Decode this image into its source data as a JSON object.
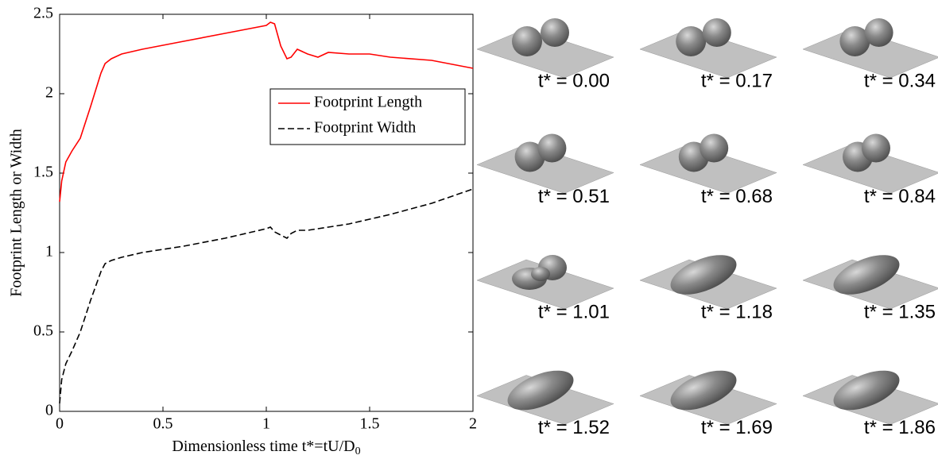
{
  "chart_data": {
    "type": "line",
    "x_label": "Dimensionless time t*=tU/D",
    "x_label_sub": "0",
    "y_label": "Footprint Length or Width",
    "x": [
      0,
      0.01,
      0.03,
      0.06,
      0.1,
      0.15,
      0.2,
      0.22,
      0.25,
      0.3,
      0.4,
      0.6,
      0.8,
      1.0,
      1.02,
      1.04,
      1.07,
      1.1,
      1.12,
      1.15,
      1.2,
      1.25,
      1.3,
      1.4,
      1.5,
      1.6,
      1.8,
      2.0
    ],
    "series": [
      {
        "name": "Footprint Length",
        "color": "#ff0000",
        "linestyle": "solid",
        "values": [
          1.32,
          1.45,
          1.57,
          1.64,
          1.72,
          1.92,
          2.13,
          2.19,
          2.22,
          2.25,
          2.28,
          2.33,
          2.38,
          2.43,
          2.45,
          2.44,
          2.3,
          2.22,
          2.23,
          2.28,
          2.25,
          2.23,
          2.26,
          2.25,
          2.25,
          2.23,
          2.21,
          2.16
        ]
      },
      {
        "name": "Footprint Width",
        "color": "#000000",
        "linestyle": "dashed",
        "values": [
          0.05,
          0.2,
          0.3,
          0.38,
          0.5,
          0.7,
          0.88,
          0.93,
          0.95,
          0.97,
          1.0,
          1.04,
          1.09,
          1.15,
          1.16,
          1.13,
          1.11,
          1.09,
          1.12,
          1.14,
          1.14,
          1.15,
          1.16,
          1.18,
          1.21,
          1.24,
          1.31,
          1.4
        ]
      }
    ],
    "xlim": [
      0,
      2
    ],
    "xticks": [
      0,
      0.5,
      1,
      1.5,
      2
    ],
    "ylim": [
      0,
      2.5
    ],
    "yticks": [
      0,
      0.5,
      1,
      1.5,
      2,
      2.5
    ],
    "grid": false,
    "legend": "upper right"
  },
  "snapshots": [
    {
      "label": "t* = 0.00"
    },
    {
      "label": "t* = 0.17"
    },
    {
      "label": "t* = 0.34"
    },
    {
      "label": "t* = 0.51"
    },
    {
      "label": "t* = 0.68"
    },
    {
      "label": "t* = 0.84"
    },
    {
      "label": "t* = 1.01"
    },
    {
      "label": "t* = 1.18"
    },
    {
      "label": "t* = 1.35"
    },
    {
      "label": "t* = 1.52"
    },
    {
      "label": "t* = 1.69"
    },
    {
      "label": "t* = 1.86"
    }
  ]
}
